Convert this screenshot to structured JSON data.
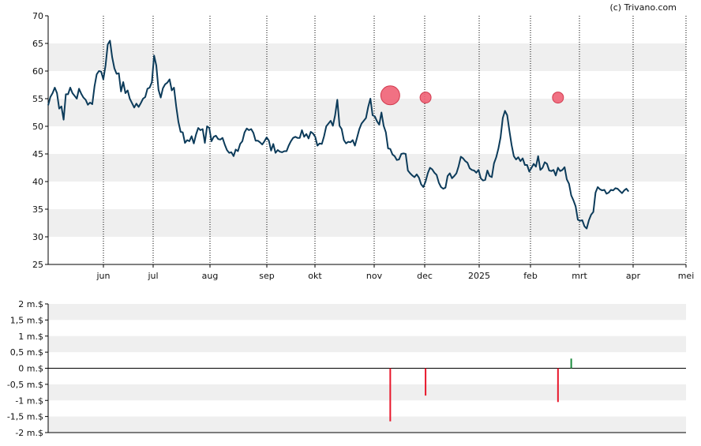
{
  "credit": "(c) Trivano.com",
  "colors": {
    "price_line": "#0c3b5a",
    "band": "#efefef",
    "insider_sell_marker": "#f06275",
    "sell_bar": "#e8172b",
    "buy_bar": "#1a8a3c",
    "axis": "#000000",
    "gridline_vertical": "#000000"
  },
  "chart_data": [
    {
      "type": "line",
      "title": "",
      "ylim": [
        25,
        70
      ],
      "y_ticks": [
        "25",
        "30",
        "35",
        "40",
        "45",
        "50",
        "55",
        "60",
        "65",
        "70"
      ],
      "x_tick_labels": [
        "jun",
        "jul",
        "aug",
        "sep",
        "okt",
        "nov",
        "dec",
        "2025",
        "feb",
        "mrt",
        "apr",
        "mei"
      ],
      "grid": "vertical dotted lines at month ticks, alternating horizontal bands",
      "series": [
        {
          "values": [
            53.8,
            55.3,
            56.0,
            57.0,
            56.0,
            53.2,
            53.6,
            51.2,
            55.8,
            55.8,
            57.0,
            56.0,
            55.5,
            55.0,
            56.8,
            55.9,
            55.2,
            54.8,
            53.9,
            54.3,
            54.0,
            57.2,
            59.4,
            60.0,
            59.9,
            58.5,
            61.0,
            64.8,
            65.5,
            62.5,
            60.5,
            59.5,
            59.6,
            56.3,
            58.0,
            56.0,
            56.5,
            55.0,
            54.2,
            53.4,
            54.1,
            53.5,
            54.2,
            55.0,
            55.3,
            56.8,
            57.0,
            58.0,
            62.8,
            61.0,
            56.6,
            55.2,
            56.9,
            57.6,
            57.9,
            58.5,
            56.5,
            57.0,
            53.6,
            50.8,
            49.0,
            48.9,
            47.0,
            47.5,
            47.3,
            48.2,
            46.9,
            48.5,
            49.7,
            49.3,
            49.5,
            47.0,
            50.0,
            49.7,
            47.3,
            48.1,
            48.3,
            47.7,
            47.6,
            47.9,
            46.7,
            45.7,
            45.2,
            45.3,
            44.6,
            45.8,
            45.5,
            46.8,
            47.3,
            48.9,
            49.6,
            49.3,
            49.5,
            48.8,
            47.4,
            47.4,
            47.1,
            46.7,
            47.3,
            48.0,
            47.4,
            45.6,
            46.8,
            45.2,
            45.7,
            45.4,
            45.3,
            45.5,
            45.5,
            46.5,
            47.3,
            47.9,
            48.1,
            47.9,
            47.9,
            49.3,
            48.1,
            48.6,
            47.8,
            49.0,
            48.7,
            48.1,
            46.5,
            46.9,
            46.8,
            48.2,
            50.0,
            50.5,
            51.0,
            50.1,
            52.0,
            54.8,
            50.1,
            49.5,
            47.5,
            46.9,
            47.2,
            47.1,
            47.5,
            46.5,
            48.0,
            49.5,
            50.5,
            51.0,
            51.5,
            53.5,
            55.0,
            52.0,
            51.8,
            50.9,
            50.3,
            52.5,
            50.1,
            48.9,
            46.0,
            45.9,
            44.9,
            44.6,
            43.9,
            44.0,
            45.0,
            45.1,
            45.0,
            42.0,
            41.5,
            41.1,
            40.8,
            41.3,
            40.7,
            39.5,
            39.0,
            40.0,
            41.5,
            42.5,
            42.2,
            41.6,
            41.2,
            39.8,
            39.0,
            38.7,
            38.9,
            41.0,
            41.5,
            40.6,
            41.0,
            41.5,
            42.8,
            44.5,
            44.2,
            43.7,
            43.4,
            42.4,
            42.1,
            42.0,
            41.6,
            42.1,
            40.6,
            40.2,
            40.3,
            42.0,
            41.0,
            40.8,
            43.3,
            44.4,
            46.0,
            48.0,
            51.5,
            52.8,
            52.0,
            49.2,
            46.6,
            44.6,
            44.0,
            44.4,
            43.7,
            44.2,
            43.0,
            43.0,
            41.8,
            42.5,
            43.2,
            42.7,
            44.6,
            42.1,
            42.5,
            43.5,
            43.2,
            42.0,
            41.9,
            42.1,
            41.1,
            42.5,
            41.9,
            42.1,
            42.6,
            40.4,
            39.6,
            37.5,
            36.6,
            35.5,
            33.1,
            32.9,
            33.0,
            31.9,
            31.5,
            33.0,
            34.0,
            34.5,
            38.0,
            39.0,
            38.6,
            38.4,
            38.5,
            37.8,
            38.0,
            38.5,
            38.4,
            38.8,
            38.7,
            38.3,
            37.9,
            38.4,
            38.7,
            38.2
          ],
          "x_range": [
            0,
            289
          ]
        }
      ],
      "markers": [
        {
          "x": 155,
          "y": 55.6,
          "size": "large"
        },
        {
          "x": 171,
          "y": 55.2,
          "size": "small"
        },
        {
          "x": 231,
          "y": 55.2,
          "size": "small"
        }
      ]
    },
    {
      "type": "bar",
      "title": "",
      "ylim": [
        -2,
        2
      ],
      "y_ticks": [
        "-2 m.$",
        "-1,5 m.$",
        "-1 m.$",
        "-0,5 m.$",
        "0 m.$",
        "0,5 m.$",
        "1 m.$",
        "1,5 m.$",
        "2 m.$"
      ],
      "bars": [
        {
          "x": 155,
          "value": -1.65
        },
        {
          "x": 171,
          "value": -0.85
        },
        {
          "x": 231,
          "value": -1.05
        },
        {
          "x": 237,
          "value": 0.3
        }
      ]
    }
  ]
}
